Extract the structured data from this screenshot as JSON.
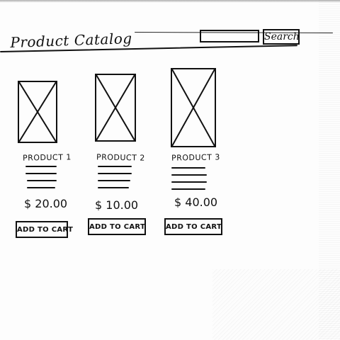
{
  "header": {
    "title": "Product Catalog",
    "search": {
      "placeholder": "",
      "value": "",
      "button_label": "Search"
    }
  },
  "products": [
    {
      "name": "PRODUCT 1",
      "price": "$ 20.00",
      "button_label": "ADD TO CART"
    },
    {
      "name": "PRODUCT 2",
      "price": "$ 10.00",
      "button_label": "ADD TO CART"
    },
    {
      "name": "PRODUCT 3",
      "price": "$ 40.00",
      "button_label": "ADD TO CART"
    }
  ],
  "icons": {
    "product_image": "image-placeholder-icon"
  },
  "colors": {
    "ink": "#111111",
    "paper": "#fdfdfd"
  }
}
